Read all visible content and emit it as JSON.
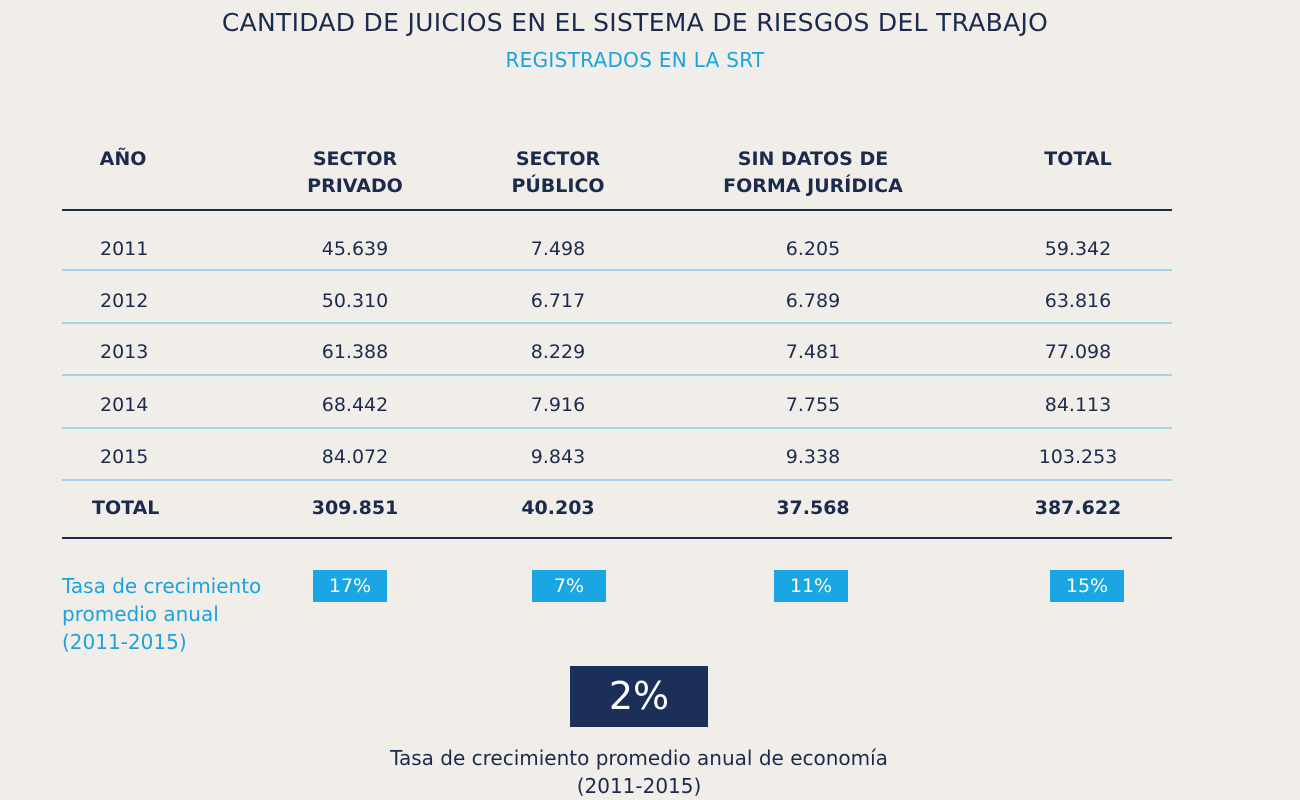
{
  "title": "CANTIDAD DE JUICIOS EN EL SISTEMA DE RIESGOS DEL TRABAJO",
  "subtitle": "REGISTRADOS EN LA SRT",
  "headers": {
    "year": "AÑO",
    "private_l1": "SECTOR",
    "private_l2": "PRIVADO",
    "public_l1": "SECTOR",
    "public_l2": "PÚBLICO",
    "nodata_l1": "SIN DATOS DE",
    "nodata_l2": "FORMA JURÍDICA",
    "total": "TOTAL"
  },
  "rows": [
    {
      "year": "2011",
      "private": "45.639",
      "public": "7.498",
      "nodata": "6.205",
      "total": "59.342"
    },
    {
      "year": "2012",
      "private": "50.310",
      "public": "6.717",
      "nodata": "6.789",
      "total": "63.816"
    },
    {
      "year": "2013",
      "private": "61.388",
      "public": "8.229",
      "nodata": "7.481",
      "total": "77.098"
    },
    {
      "year": "2014",
      "private": "68.442",
      "public": "7.916",
      "nodata": "7.755",
      "total": "84.113"
    },
    {
      "year": "2015",
      "private": "84.072",
      "public": "9.843",
      "nodata": "9.338",
      "total": "103.253"
    }
  ],
  "totals": {
    "label": "TOTAL",
    "private": "309.851",
    "public": "40.203",
    "nodata": "37.568",
    "total": "387.622"
  },
  "growth": {
    "label_l1": "Tasa de crecimiento",
    "label_l2": "promedio anual",
    "label_l3": "(2011-2015)",
    "private": "17%",
    "public": "7%",
    "nodata": "11%",
    "total": "15%"
  },
  "economy": {
    "value": "2%",
    "caption_l1": "Tasa de crecimiento promedio anual de economía",
    "caption_l2": "(2011-2015)"
  },
  "colors": {
    "navy": "#1c2b4d",
    "accent": "#1aa3dc",
    "background": "#f1eeea"
  }
}
